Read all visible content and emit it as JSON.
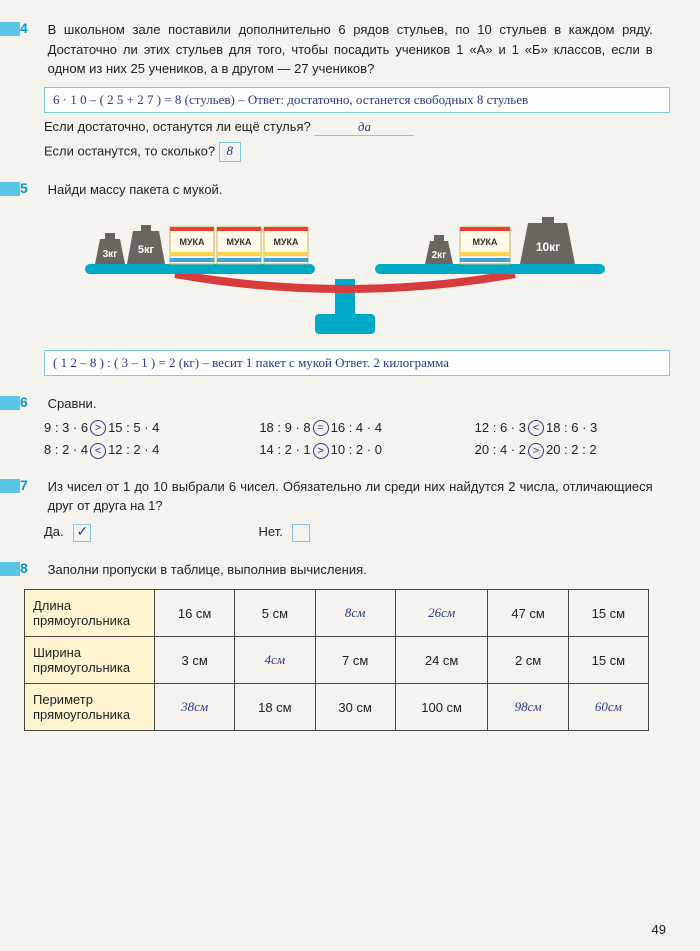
{
  "page_number": "49",
  "problems": {
    "p4": {
      "num": "4",
      "text": "В школьном зале поставили дополнительно 6 рядов стульев, по 10 стульев в каждом ряду. Достаточно ли этих стульев для того, чтобы посадить учеников 1 «А» и 1 «Б» классов, если в одном из них 25 учеников, а в другом — 27 учеников?",
      "work": "6 · 1 0 – ( 2 5 + 2 7 ) = 8 (стульев) – Ответ: достаточно, останется свободных 8 стульев",
      "q1": "Если достаточно, останутся ли ещё стулья?",
      "a1": "да",
      "q2": "Если останутся, то сколько?",
      "a2": "8"
    },
    "p5": {
      "num": "5",
      "text": "Найди массу пакета с мукой.",
      "scale": {
        "left_weights": [
          "3кг",
          "5кг"
        ],
        "left_bags": [
          "МУКА",
          "МУКА",
          "МУКА"
        ],
        "right_weights_small": [
          "2кг"
        ],
        "right_bags": [
          "МУКА"
        ],
        "right_weight_large": "10кг",
        "bag_colors": {
          "top": "#ef3d33",
          "mid": "#ffd24a",
          "bottom": "#3fa4d8",
          "body": "#fff9e8"
        },
        "weight_color": "#6b6560",
        "tray_color": "#00a9c7",
        "beam_color": "#d63c3c"
      },
      "work": "( 1 2 – 8 ) : ( 3 – 1 ) = 2 (кг) – весит 1 пакет с мукой   Ответ. 2 килограмма"
    },
    "p6": {
      "num": "6",
      "text": "Сравни.",
      "rows": [
        [
          {
            "left": "9 : 3 · 6",
            "op": ">",
            "right": "15 : 5 · 4"
          },
          {
            "left": "18 : 9 · 8",
            "op": "=",
            "right": "16 : 4 · 4"
          },
          {
            "left": "12 : 6 · 3",
            "op": "<",
            "right": "18 : 6 · 3"
          }
        ],
        [
          {
            "left": "8 : 2 · 4",
            "op": "<",
            "right": "12 : 2 · 4"
          },
          {
            "left": "14 : 2 · 1",
            "op": ">",
            "right": "10 : 2 · 0"
          },
          {
            "left": "20 : 4 · 2",
            "op": ">",
            "right": "20 : 2 : 2"
          }
        ]
      ]
    },
    "p7": {
      "num": "7",
      "text": "Из чисел от 1 до 10 выбрали 6 чисел. Обязательно ли среди них найдутся 2 числа, отличающиеся друг от друга на 1?",
      "yes_label": "Да.",
      "no_label": "Нет.",
      "yes_checked": "✓",
      "no_checked": ""
    },
    "p8": {
      "num": "8",
      "text": "Заполни пропуски в таблице, выполнив вычисления.",
      "table": {
        "row_labels": [
          "Длина прямоугольника",
          "Ширина прямоугольника",
          "Периметр прямоугольника"
        ],
        "cells": [
          [
            "16 см",
            "5 см",
            "8см",
            "26см",
            "47 см",
            "15 см"
          ],
          [
            "3 см",
            "4см",
            "7 см",
            "24 см",
            "2 см",
            "15 см"
          ],
          [
            "38см",
            "18 см",
            "30 см",
            "100 см",
            "98см",
            "60см"
          ]
        ],
        "handwritten": [
          [
            false,
            false,
            true,
            true,
            false,
            false
          ],
          [
            false,
            true,
            false,
            false,
            false,
            false
          ],
          [
            true,
            false,
            false,
            false,
            true,
            true
          ]
        ]
      }
    }
  }
}
